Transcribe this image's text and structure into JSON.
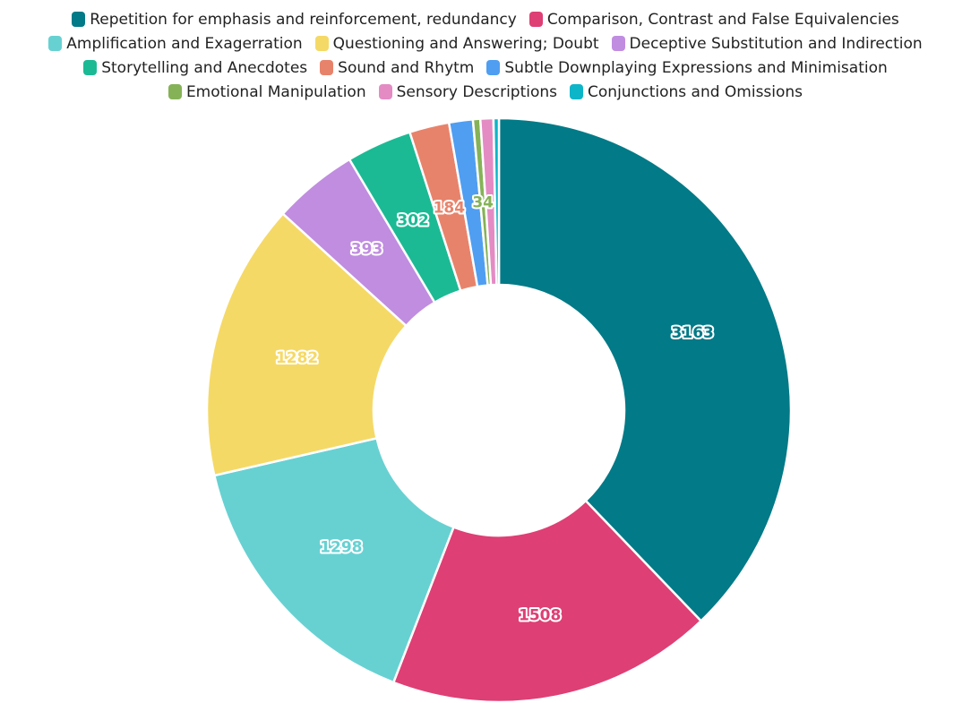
{
  "chart_data": {
    "type": "pie",
    "donut": true,
    "legend_position": "top",
    "slices": [
      {
        "label": "Repetition for emphasis and reinforcement, redundancy",
        "value": 3163,
        "color": "#027a87",
        "show_label": true
      },
      {
        "label": "Comparison, Contrast and False Equivalencies",
        "value": 1508,
        "color": "#de3f74",
        "show_label": true
      },
      {
        "label": "Amplification and Exagerration",
        "value": 1298,
        "color": "#67d1d2",
        "show_label": true
      },
      {
        "label": "Questioning and Answering; Doubt",
        "value": 1282,
        "color": "#f5d967",
        "show_label": true
      },
      {
        "label": "Deceptive Substitution and Indirection",
        "value": 393,
        "color": "#c08de0",
        "show_label": true
      },
      {
        "label": "Storytelling and Anecdotes",
        "value": 302,
        "color": "#1cba94",
        "show_label": true
      },
      {
        "label": "Sound and Rhytm",
        "value": 184,
        "color": "#e8836b",
        "show_label": true
      },
      {
        "label": "Subtle Downplaying Expressions and Minimisation",
        "value": 110,
        "color": "#4f9ef2",
        "show_label": false
      },
      {
        "label": "Emotional Manipulation",
        "value": 34,
        "color": "#85b257",
        "show_label": true
      },
      {
        "label": "Sensory Descriptions",
        "value": 60,
        "color": "#e48bc4",
        "show_label": false
      },
      {
        "label": "Conjunctions and Omissions",
        "value": 25,
        "color": "#0db5c9",
        "show_label": false
      }
    ]
  }
}
